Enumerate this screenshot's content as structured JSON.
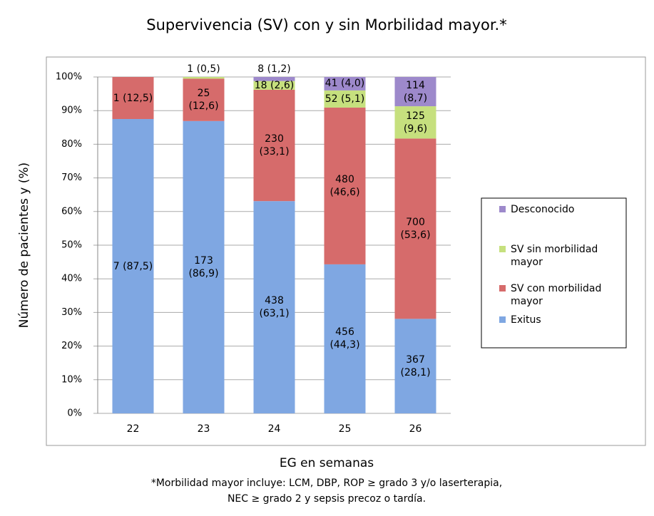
{
  "chart_data": {
    "type": "stacked-bar",
    "title": "Supervivencia (SV) con y sin Morbilidad mayor.*",
    "x_label": "EG en semanas",
    "y_label": "Número de pacientes y (%)",
    "footnote": [
      "*Morbilidad mayor incluye: LCM, DBP, ROP ≥  grado 3 y/o laserterapia,",
      "NEC ≥  grado 2 y sepsis precoz o tardía."
    ],
    "categories": [
      "22",
      "23",
      "24",
      "25",
      "26"
    ],
    "ylim": [
      0,
      100
    ],
    "yticks": [
      {
        "value": 0,
        "label": "0%"
      },
      {
        "value": 10,
        "label": "10%"
      },
      {
        "value": 20,
        "label": "20%"
      },
      {
        "value": 30,
        "label": "30%"
      },
      {
        "value": 40,
        "label": "40%"
      },
      {
        "value": 50,
        "label": "50%"
      },
      {
        "value": 60,
        "label": "60%"
      },
      {
        "value": 70,
        "label": "70%"
      },
      {
        "value": 80,
        "label": "80%"
      },
      {
        "value": 90,
        "label": "90%"
      },
      {
        "value": 100,
        "label": "100%"
      }
    ],
    "grid": true,
    "legend": "right",
    "series": [
      {
        "name": "Exitus",
        "color": "#7fa7e2",
        "values": [
          87.5,
          86.9,
          63.1,
          44.3,
          28.1
        ],
        "value_labels": [
          "7 (87,5)",
          "173 (86,9)",
          "438 (63,1)",
          "456 (44,3)",
          "367 (28,1)"
        ]
      },
      {
        "name": "SV con morbilidad mayor",
        "color": "#d66b6b",
        "values": [
          12.5,
          12.6,
          33.1,
          46.6,
          53.6
        ],
        "value_labels": [
          "1 (12,5)",
          "25 (12,6)",
          "230 (33,1)",
          "480 (46,6)",
          "700 (53,6)"
        ]
      },
      {
        "name": "SV sin morbilidad mayor",
        "color": "#c6e07e",
        "values": [
          null,
          0.5,
          2.6,
          5.1,
          9.6
        ],
        "value_labels": [
          null,
          "1 (0,5)",
          "18 (2,6)",
          "52 (5,1)",
          "125 (9,6)"
        ]
      },
      {
        "name": "Desconocido",
        "color": "#9d89cb",
        "values": [
          null,
          null,
          1.2,
          4.0,
          8.7
        ],
        "value_labels": [
          null,
          null,
          "8 (1,2)",
          "41 (4,0)",
          "114 (8,7)"
        ]
      }
    ]
  }
}
